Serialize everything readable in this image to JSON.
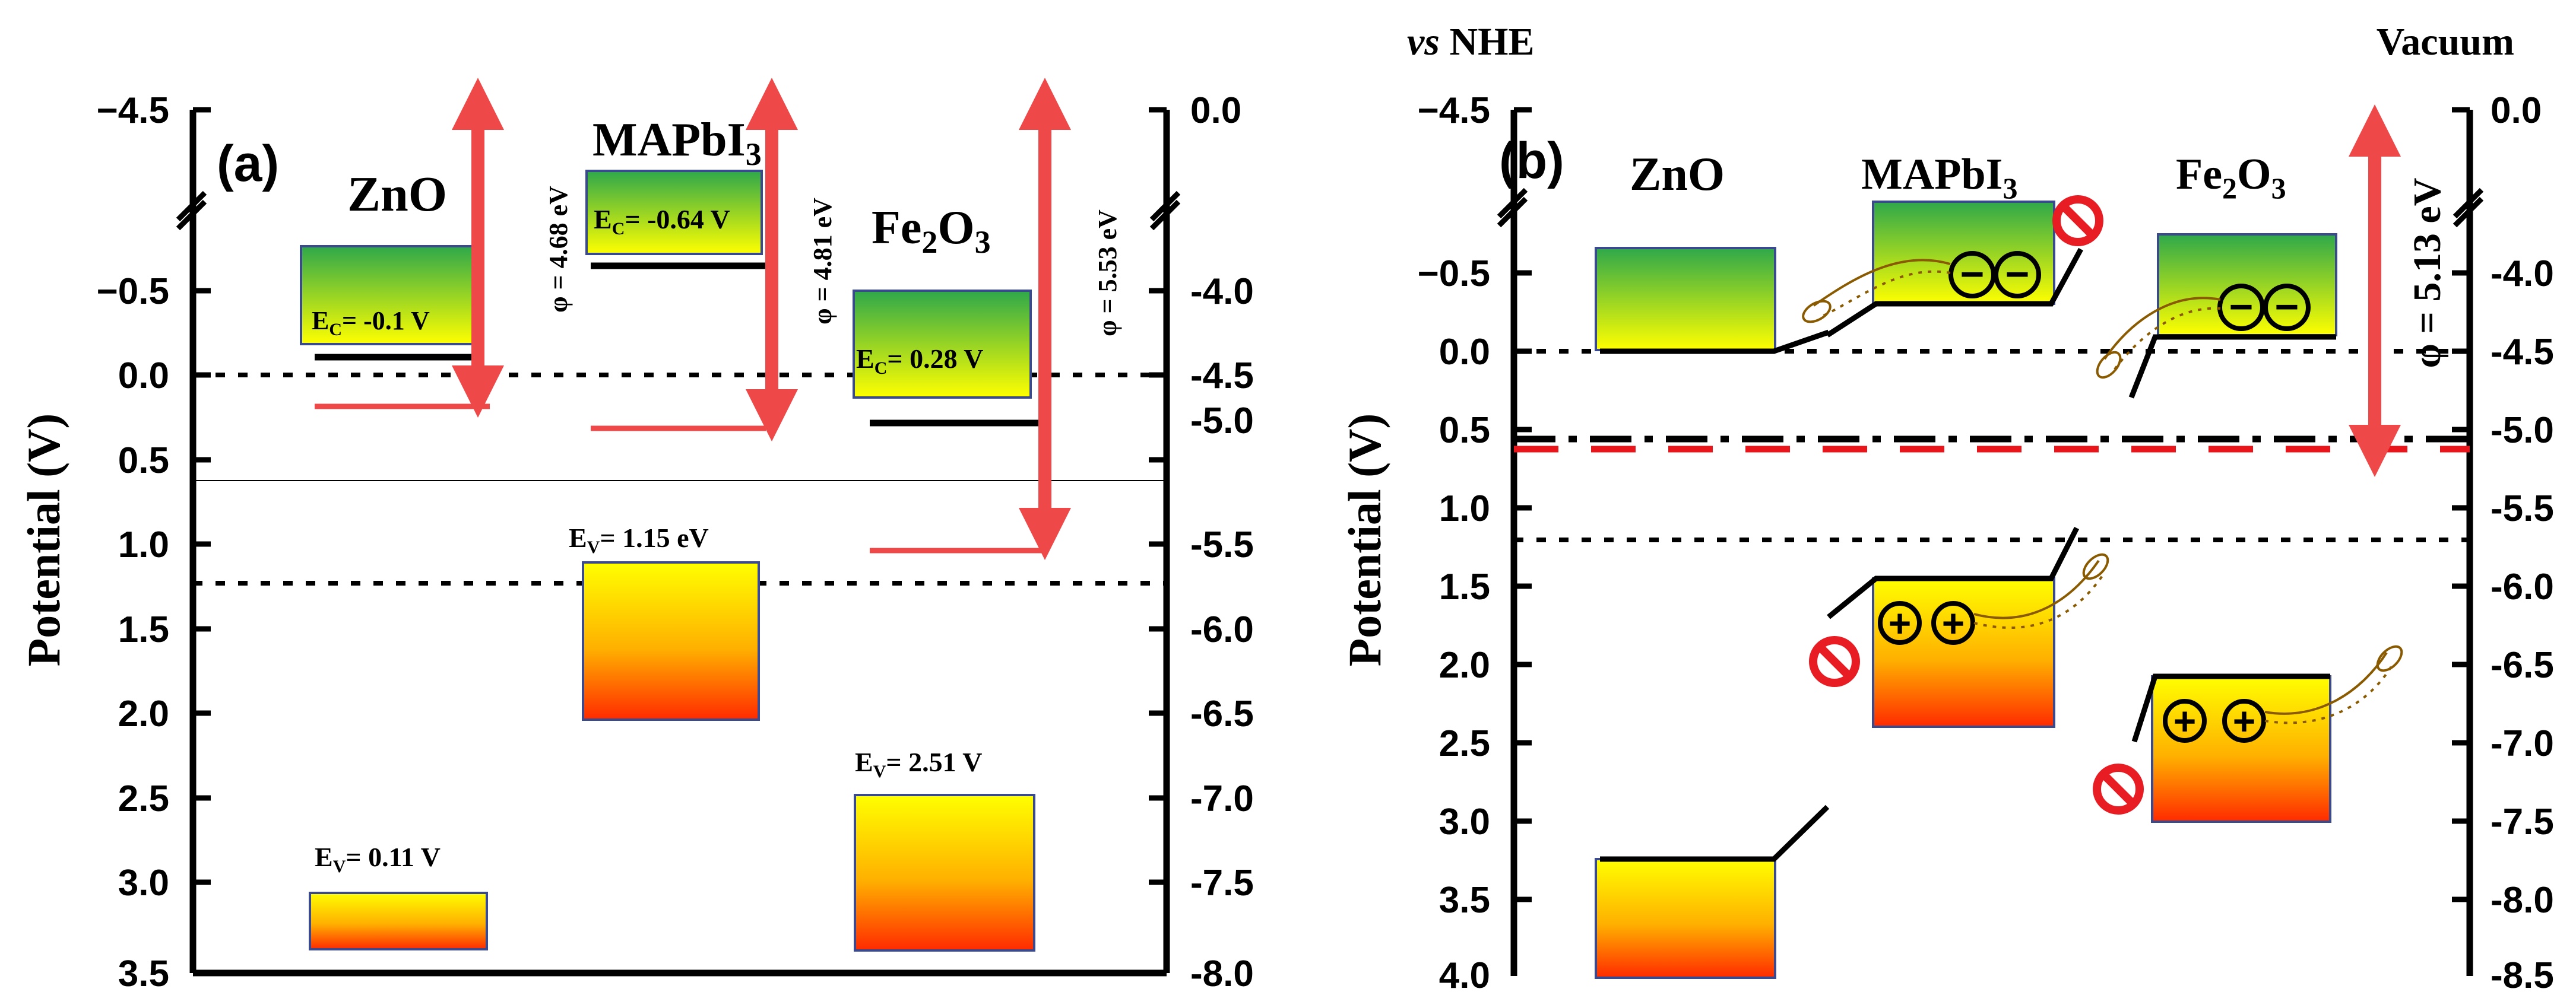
{
  "panel_a": {
    "label": "(a)",
    "y_axis_label": "Potential (V)",
    "left_ticks": [
      "−4.5",
      "−0.5",
      "0.0",
      "0.5",
      "1.0",
      "1.5",
      "2.0",
      "2.5",
      "3.0",
      "3.5"
    ],
    "right_ticks": [
      "0.0",
      "-4.0",
      "-4.5",
      "-5.0",
      "-5.5",
      "-6.0",
      "-6.5",
      "-7.0",
      "-7.5",
      "-8.0"
    ],
    "materials": {
      "zno": {
        "name": "ZnO",
        "ec_label": "E",
        "ec_sub": "C",
        "ec_value": "= -0.1 V",
        "ev_label": "E",
        "ev_sub": "V",
        "ev_value": "= 0.11 V",
        "phi": "φ = 4.68 eV"
      },
      "mapbi3": {
        "name_main": "MAPbI",
        "name_sub": "3",
        "ec_label": "E",
        "ec_sub": "C",
        "ec_value": "= -0.64 V",
        "ev_label": "E",
        "ev_sub": "V",
        "ev_value": "= 1.15 eV",
        "phi": "φ = 4.81 eV"
      },
      "fe2o3": {
        "name_a": "Fe",
        "name_sub": "2",
        "name_b": "O",
        "name_sub2": "3",
        "ec_label": "E",
        "ec_sub": "C",
        "ec_value": "= 0.28 V",
        "ev_label": "E",
        "ev_sub": "V",
        "ev_value": "= 2.51 V",
        "phi": "φ = 5.53 eV"
      }
    }
  },
  "panel_b": {
    "label": "(b)",
    "header_left_italic": "vs",
    "header_left": " NHE",
    "header_right": "Vacuum",
    "y_axis_label": "Potential (V)",
    "left_ticks": [
      "−4.5",
      "−0.5",
      "0.0",
      "0.5",
      "1.0",
      "1.5",
      "2.0",
      "2.5",
      "3.0",
      "3.5",
      "4.0"
    ],
    "right_ticks": [
      "0.0",
      "-4.0",
      "-4.5",
      "-5.0",
      "-5.5",
      "-6.0",
      "-6.5",
      "-7.0",
      "-7.5",
      "-8.0",
      "-8.5"
    ],
    "materials": {
      "zno": {
        "name": "ZnO"
      },
      "mapbi3": {
        "name_main": "MAPbI",
        "name_sub": "3"
      },
      "fe2o3": {
        "name_a": "Fe",
        "name_sub": "2",
        "name_b": "O",
        "name_sub2": "3"
      }
    },
    "phi": "φ = 5.13 eV",
    "electron_symbol": "−",
    "hole_symbol": "+"
  },
  "colors": {
    "red": "#ef4848",
    "dashed_red": "#e8161b",
    "band_edge": "#3b4a8c"
  }
}
